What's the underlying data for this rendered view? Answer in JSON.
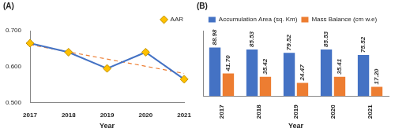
{
  "chart_data": [
    {
      "type": "line",
      "title": "(A)",
      "xlabel": "Year",
      "categories": [
        "2017",
        "2018",
        "2019",
        "2020",
        "2021"
      ],
      "series": [
        {
          "name": "AAR",
          "color": "#4472c4",
          "marker": "diamond",
          "values": [
            0.665,
            0.64,
            0.595,
            0.64,
            0.565
          ]
        },
        {
          "color": "#ed7d31",
          "marker": "none",
          "line_style": "dashed",
          "values": [
            0.661,
            0.641,
            0.621,
            0.601,
            0.581
          ]
        }
      ],
      "ylim": [
        0.5,
        0.7
      ],
      "yticks": [
        {
          "value": 0.5,
          "label": "0.500"
        },
        {
          "value": 0.6,
          "label": "0.600"
        },
        {
          "value": 0.7,
          "label": "0.700"
        }
      ],
      "grid": false,
      "legend": "top-right"
    },
    {
      "type": "bar",
      "title": "(B)",
      "xlabel": "Year",
      "categories": [
        "2017",
        "2018",
        "2019",
        "2020",
        "2021"
      ],
      "series": [
        {
          "name": "Accumulation Area (sq. Km)",
          "color": "#4472c4",
          "values": [
            88.98,
            85.53,
            79.52,
            85.53,
            75.52
          ],
          "value_labels": [
            "88.98",
            "85.53",
            "79.52",
            "85.53",
            "75.52"
          ]
        },
        {
          "name": "Mass Balance (cm w.e)",
          "color": "#ed7d31",
          "values": [
            41.7,
            35.42,
            24.47,
            35.41,
            17.2
          ],
          "value_labels": [
            "41.70",
            "35.42",
            "24.47",
            "35.41",
            "17.20"
          ]
        }
      ],
      "ylim": [
        0,
        120
      ],
      "grid": false,
      "legend": "top",
      "data_labels": true,
      "tick_labels": "x"
    }
  ]
}
